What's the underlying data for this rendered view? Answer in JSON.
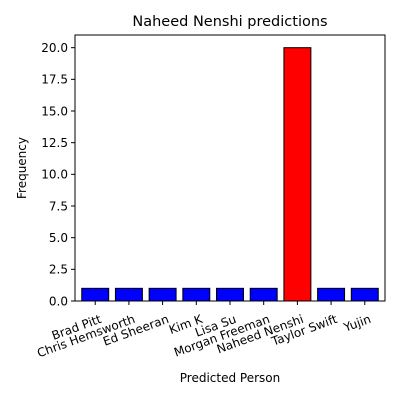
{
  "chart_data": {
    "type": "bar",
    "title": "Naheed Nenshi predictions",
    "xlabel": "Predicted Person",
    "ylabel": "Frequency",
    "categories": [
      "Brad Pitt",
      "Chris Hemsworth",
      "Ed Sheeran",
      "Kim K",
      "Lisa Su",
      "Morgan Freeman",
      "Naheed Nenshi",
      "Taylor Swift",
      "Yujin"
    ],
    "values": [
      1,
      1,
      1,
      1,
      1,
      1,
      20,
      1,
      1
    ],
    "bar_colors": [
      "#0000ff",
      "#0000ff",
      "#0000ff",
      "#0000ff",
      "#0000ff",
      "#0000ff",
      "#ff0000",
      "#0000ff",
      "#0000ff"
    ],
    "edge_color": "#000000",
    "ylim": [
      0,
      21
    ],
    "yticks": [
      0.0,
      2.5,
      5.0,
      7.5,
      10.0,
      12.5,
      15.0,
      17.5,
      20.0
    ],
    "ytick_labels": [
      "0.0",
      "2.5",
      "5.0",
      "7.5",
      "10.0",
      "12.5",
      "15.0",
      "17.5",
      "20.0"
    ],
    "grid": false,
    "xtick_rotation_deg": 20
  }
}
